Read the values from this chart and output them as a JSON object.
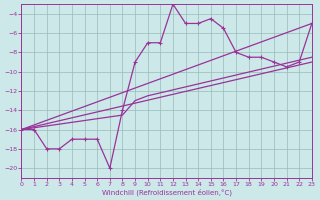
{
  "xlabel": "Windchill (Refroidissement éolien,°C)",
  "xlim": [
    0,
    23
  ],
  "ylim": [
    -21,
    -3
  ],
  "yticks": [
    -4,
    -6,
    -8,
    -10,
    -12,
    -14,
    -16,
    -18,
    -20
  ],
  "xticks": [
    0,
    1,
    2,
    3,
    4,
    5,
    6,
    7,
    8,
    9,
    10,
    11,
    12,
    13,
    14,
    15,
    16,
    17,
    18,
    19,
    20,
    21,
    22,
    23
  ],
  "line_color": "#993399",
  "bg_color": "#cce8e8",
  "grid_color": "#99bbbb",
  "zigzag_x": [
    0,
    1,
    2,
    3,
    4,
    5,
    6,
    7,
    8,
    9,
    10,
    11,
    12,
    13,
    14,
    15,
    16,
    17,
    18,
    19,
    20,
    21,
    22,
    23
  ],
  "zigzag_y": [
    -16,
    -16,
    -18,
    -18,
    -17,
    -17,
    -17,
    -20,
    -14,
    -9,
    -7,
    -7,
    -3,
    -5,
    -5,
    -4.5,
    -5.5,
    -8,
    -8.5,
    -8.5,
    -9,
    -9.5,
    -9,
    -5
  ],
  "trend1_x": [
    0,
    23
  ],
  "trend1_y": [
    -16,
    -5
  ],
  "trend2_x": [
    0,
    8,
    9,
    10,
    23
  ],
  "trend2_y": [
    -16,
    -14.5,
    -13,
    -12.5,
    -8.5
  ],
  "trend3_x": [
    0,
    23
  ],
  "trend3_y": [
    -16,
    -9
  ]
}
